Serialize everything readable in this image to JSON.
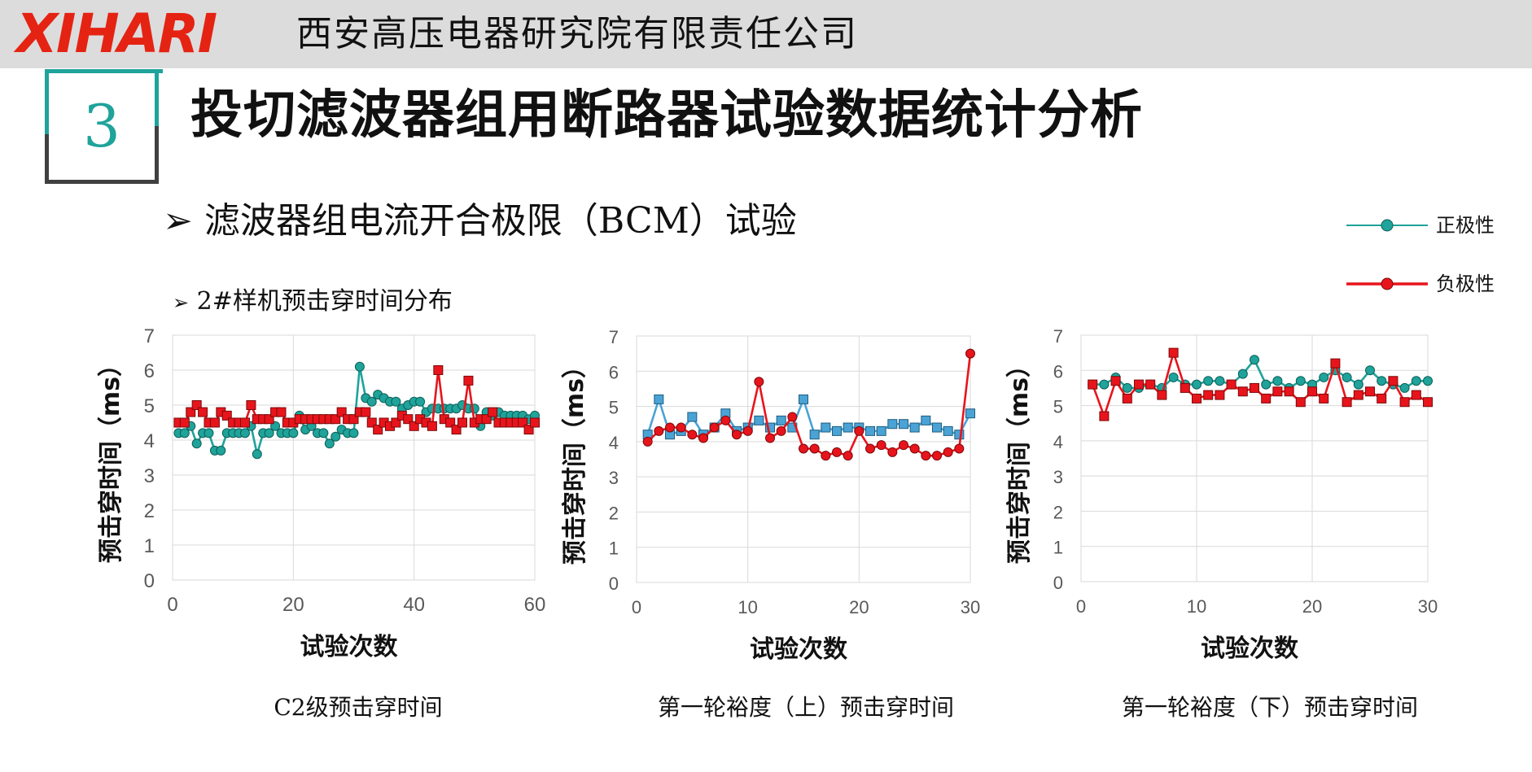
{
  "header": {
    "logo": "XIHARI",
    "company": "西安高压电器研究院有限责任公司"
  },
  "section_number": "3",
  "title": "投切滤波器组用断路器试验数据统计分析",
  "subtitle1": "滤波器组电流开合极限（BCM）试验",
  "subtitle2": "2#样机预击穿时间分布",
  "bullet_glyph": "➢",
  "legend": [
    {
      "label": "正极性",
      "color": "#1fa39a"
    },
    {
      "label": "负极性",
      "color": "#e8141c"
    }
  ],
  "chart_data": [
    {
      "type": "line",
      "caption": "C2级预击穿时间",
      "xlabel": "试验次数",
      "ylabel": "预击穿时间（ms）",
      "xlim": [
        0,
        60
      ],
      "ylim": [
        0,
        7
      ],
      "xticks": [
        0,
        20,
        40,
        60
      ],
      "yticks": [
        0,
        1,
        2,
        3,
        4,
        5,
        6,
        7
      ],
      "grid": true,
      "series": [
        {
          "x": [
            1,
            2,
            3,
            4,
            5,
            6,
            7,
            8,
            9,
            10,
            11,
            12,
            13,
            14,
            15,
            16,
            17,
            18,
            19,
            20,
            21,
            22,
            23,
            24,
            25,
            26,
            27,
            28,
            29,
            30,
            31,
            32,
            33,
            34,
            35,
            36,
            37,
            38,
            39,
            40,
            41,
            42,
            43,
            44,
            45,
            46,
            47,
            48,
            49,
            50,
            51,
            52,
            53,
            54,
            55,
            56,
            57,
            58,
            59,
            60
          ],
          "values": [
            4.2,
            4.2,
            4.4,
            3.9,
            4.2,
            4.2,
            3.7,
            3.7,
            4.2,
            4.2,
            4.2,
            4.2,
            4.4,
            3.6,
            4.2,
            4.2,
            4.4,
            4.2,
            4.2,
            4.2,
            4.7,
            4.3,
            4.4,
            4.2,
            4.2,
            3.9,
            4.1,
            4.3,
            4.2,
            4.2,
            6.1,
            5.2,
            5.1,
            5.3,
            5.2,
            5.1,
            5.1,
            4.9,
            5.0,
            5.1,
            5.1,
            4.8,
            4.9,
            4.9,
            4.9,
            4.9,
            4.9,
            5.0,
            4.9,
            4.9,
            4.4,
            4.8,
            4.7,
            4.8,
            4.7,
            4.7,
            4.7,
            4.7,
            4.6,
            4.7
          ],
          "color": "#1fa39a",
          "marker": "circle"
        },
        {
          "x": [
            1,
            2,
            3,
            4,
            5,
            6,
            7,
            8,
            9,
            10,
            11,
            12,
            13,
            14,
            15,
            16,
            17,
            18,
            19,
            20,
            21,
            22,
            23,
            24,
            25,
            26,
            27,
            28,
            29,
            30,
            31,
            32,
            33,
            34,
            35,
            36,
            37,
            38,
            39,
            40,
            41,
            42,
            43,
            44,
            45,
            46,
            47,
            48,
            49,
            50,
            51,
            52,
            53,
            54,
            55,
            56,
            57,
            58,
            59,
            60
          ],
          "values": [
            4.5,
            4.5,
            4.8,
            5.0,
            4.8,
            4.5,
            4.5,
            4.8,
            4.7,
            4.5,
            4.5,
            4.5,
            5.0,
            4.6,
            4.6,
            4.6,
            4.8,
            4.8,
            4.5,
            4.5,
            4.6,
            4.6,
            4.6,
            4.6,
            4.6,
            4.6,
            4.6,
            4.8,
            4.6,
            4.6,
            4.8,
            4.8,
            4.5,
            4.3,
            4.5,
            4.4,
            4.5,
            4.7,
            4.6,
            4.4,
            4.6,
            4.5,
            4.4,
            6.0,
            4.6,
            4.5,
            4.3,
            4.5,
            5.7,
            4.5,
            4.6,
            4.6,
            4.8,
            4.5,
            4.5,
            4.5,
            4.5,
            4.5,
            4.3,
            4.5
          ],
          "color": "#e8141c",
          "marker": "square"
        }
      ]
    },
    {
      "type": "line",
      "caption": "第一轮裕度（上）预击穿时间",
      "xlabel": "试验次数",
      "ylabel": "预击穿时间（ms）",
      "xlim": [
        0,
        30
      ],
      "ylim": [
        0,
        7
      ],
      "xticks": [
        0,
        10,
        20,
        30
      ],
      "yticks": [
        0,
        1,
        2,
        3,
        4,
        5,
        6,
        7
      ],
      "grid": true,
      "series": [
        {
          "x": [
            1,
            2,
            3,
            4,
            5,
            6,
            7,
            8,
            9,
            10,
            11,
            12,
            13,
            14,
            15,
            16,
            17,
            18,
            19,
            20,
            21,
            22,
            23,
            24,
            25,
            26,
            27,
            28,
            29,
            30
          ],
          "values": [
            4.2,
            5.2,
            4.2,
            4.3,
            4.7,
            4.2,
            4.4,
            4.8,
            4.3,
            4.4,
            4.6,
            4.4,
            4.6,
            4.4,
            5.2,
            4.2,
            4.4,
            4.3,
            4.4,
            4.4,
            4.3,
            4.3,
            4.5,
            4.5,
            4.4,
            4.6,
            4.4,
            4.3,
            4.2,
            4.8
          ],
          "color": "#4aa3d4",
          "marker": "square"
        },
        {
          "x": [
            1,
            2,
            3,
            4,
            5,
            6,
            7,
            8,
            9,
            10,
            11,
            12,
            13,
            14,
            15,
            16,
            17,
            18,
            19,
            20,
            21,
            22,
            23,
            24,
            25,
            26,
            27,
            28,
            29,
            30
          ],
          "values": [
            4.0,
            4.3,
            4.4,
            4.4,
            4.2,
            4.1,
            4.4,
            4.6,
            4.2,
            4.3,
            5.7,
            4.1,
            4.3,
            4.7,
            3.8,
            3.8,
            3.6,
            3.7,
            3.6,
            4.3,
            3.8,
            3.9,
            3.7,
            3.9,
            3.8,
            3.6,
            3.6,
            3.7,
            3.8,
            6.5
          ],
          "color": "#e8141c",
          "marker": "circle"
        }
      ]
    },
    {
      "type": "line",
      "caption": "第一轮裕度（下）预击穿时间",
      "xlabel": "试验次数",
      "ylabel": "预击穿时间（ms）",
      "xlim": [
        0,
        30
      ],
      "ylim": [
        0,
        7
      ],
      "xticks": [
        0,
        10,
        20,
        30
      ],
      "yticks": [
        0,
        1,
        2,
        3,
        4,
        5,
        6,
        7
      ],
      "grid": true,
      "series": [
        {
          "x": [
            1,
            2,
            3,
            4,
            5,
            6,
            7,
            8,
            9,
            10,
            11,
            12,
            13,
            14,
            15,
            16,
            17,
            18,
            19,
            20,
            21,
            22,
            23,
            24,
            25,
            26,
            27,
            28,
            29,
            30
          ],
          "values": [
            5.6,
            5.6,
            5.8,
            5.5,
            5.5,
            5.6,
            5.5,
            5.8,
            5.6,
            5.6,
            5.7,
            5.7,
            5.6,
            5.9,
            6.3,
            5.6,
            5.7,
            5.5,
            5.7,
            5.6,
            5.8,
            6.0,
            5.8,
            5.6,
            6.0,
            5.7,
            5.6,
            5.5,
            5.7,
            5.7
          ],
          "color": "#1fa39a",
          "marker": "circle"
        },
        {
          "x": [
            1,
            2,
            3,
            4,
            5,
            6,
            7,
            8,
            9,
            10,
            11,
            12,
            13,
            14,
            15,
            16,
            17,
            18,
            19,
            20,
            21,
            22,
            23,
            24,
            25,
            26,
            27,
            28,
            29,
            30
          ],
          "values": [
            5.6,
            4.7,
            5.7,
            5.2,
            5.6,
            5.6,
            5.3,
            6.5,
            5.5,
            5.2,
            5.3,
            5.3,
            5.6,
            5.4,
            5.5,
            5.2,
            5.4,
            5.4,
            5.1,
            5.4,
            5.2,
            6.2,
            5.1,
            5.3,
            5.4,
            5.2,
            5.7,
            5.1,
            5.3,
            5.1
          ],
          "color": "#e8141c",
          "marker": "square"
        }
      ]
    }
  ]
}
